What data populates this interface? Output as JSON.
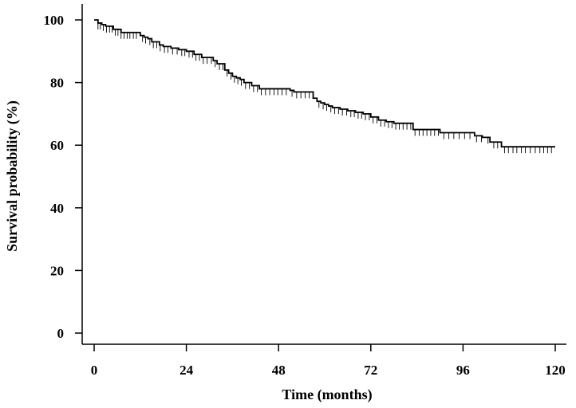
{
  "chart_data": {
    "type": "line",
    "title": "",
    "xlabel": "Time (months)",
    "ylabel": "Survival probability (%)",
    "xlim": [
      0,
      120
    ],
    "ylim": [
      0,
      100
    ],
    "xticks": [
      0,
      24,
      48,
      72,
      96,
      120
    ],
    "yticks": [
      0,
      20,
      40,
      60,
      80,
      100
    ],
    "grid": false,
    "legend": "none",
    "line_color": "#000000",
    "series": [
      {
        "step": true,
        "x": [
          0,
          1,
          2,
          3,
          5,
          7,
          12,
          13,
          14,
          15,
          17,
          18,
          20,
          22,
          24,
          26,
          28,
          31,
          32,
          34,
          35,
          36,
          37,
          38,
          39,
          41,
          43,
          51,
          52,
          57,
          58,
          59,
          60,
          61,
          62,
          64,
          66,
          68,
          70,
          72,
          74,
          76,
          78,
          83,
          90,
          99,
          101,
          103,
          106,
          120
        ],
        "y": [
          100,
          99,
          98.5,
          98,
          97,
          96,
          95,
          94.5,
          94,
          93,
          92,
          91.5,
          91,
          90.5,
          90,
          89,
          88,
          87,
          86,
          84,
          83,
          82,
          81.5,
          81,
          80,
          79,
          78,
          77.5,
          77,
          75,
          74,
          73.5,
          73,
          72.5,
          72,
          71.5,
          71,
          70.5,
          70,
          69,
          68,
          67.5,
          67,
          65,
          64,
          63,
          62.5,
          61,
          59.5,
          59.5
        ]
      }
    ],
    "censor_times": [
      1,
      1.6,
      2.4,
      3.2,
      4,
      4.7,
      5.5,
      6.2,
      7,
      7.8,
      8.6,
      9.3,
      10.2,
      11,
      12.6,
      13.4,
      14.5,
      15.4,
      16.3,
      17.2,
      18.3,
      19.2,
      20.4,
      21.6,
      22.8,
      23.6,
      24.7,
      25.6,
      26.5,
      27.4,
      28.4,
      29.4,
      30.5,
      31.5,
      32.6,
      33.5,
      34.6,
      35.6,
      36.5,
      37.4,
      38.3,
      39.4,
      40.4,
      41.5,
      42.5,
      43.5,
      44.6,
      45.7,
      46.8,
      47.8,
      48.9,
      50,
      51.5,
      52.7,
      53.8,
      54.9,
      56,
      58.5,
      59.6,
      60.5,
      61.6,
      62.6,
      63.6,
      64.6,
      65.7,
      66.8,
      67.7,
      68.7,
      69.6,
      70.6,
      71.6,
      72.6,
      73.6,
      74.6,
      75.6,
      76.6,
      77.5,
      78.5,
      79.4,
      80.4,
      81.4,
      82.4,
      83.5,
      84.6,
      85.6,
      86.6,
      87.6,
      88.6,
      89.6,
      91,
      92.3,
      93.6,
      95,
      96.4,
      97.8,
      99.5,
      100.8,
      102.5,
      104,
      105,
      106.8,
      107.8,
      109,
      110,
      111.2,
      112.2,
      113.5,
      114.8,
      116,
      117,
      118,
      119
    ]
  }
}
